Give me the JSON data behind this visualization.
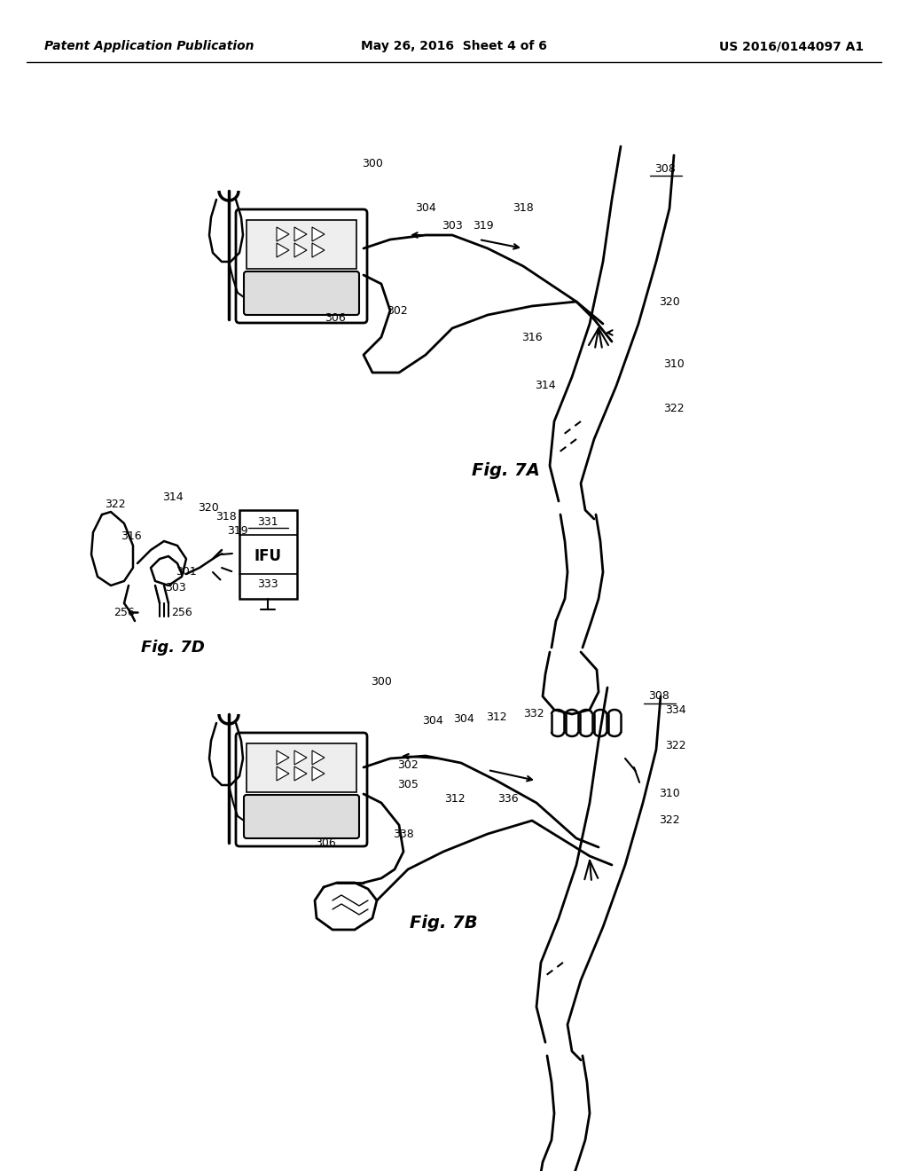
{
  "bg_color": "#ffffff",
  "header_left": "Patent Application Publication",
  "header_center": "May 26, 2016  Sheet 4 of 6",
  "header_right": "US 2016/0144097 A1",
  "fig7a_label": "Fig. 7A",
  "fig7b_label": "Fig. 7B",
  "fig7d_label": "Fig. 7D"
}
